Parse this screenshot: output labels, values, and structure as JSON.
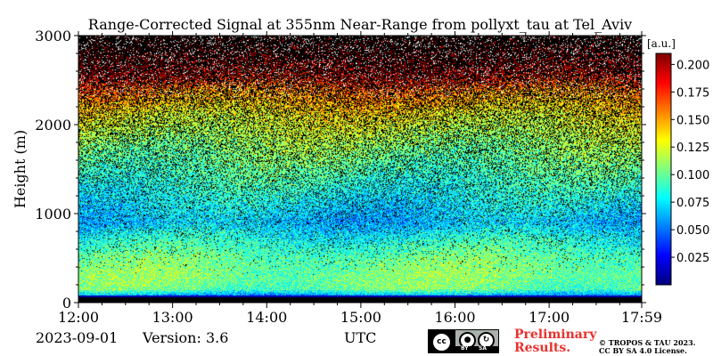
{
  "chart_data": {
    "type": "heatmap",
    "title": "Range-Corrected Signal at 355nm Near-Range from pollyxt_tau at Tel_Aviv",
    "xlabel": "UTC",
    "ylabel": "Height (m)",
    "x_tick_labels": [
      "12:00",
      "13:00",
      "14:00",
      "15:00",
      "16:00",
      "17:00",
      "17:59"
    ],
    "y_ticks": [
      0,
      1000,
      2000,
      3000
    ],
    "ylim": [
      0,
      3000
    ],
    "x_range": [
      "12:00",
      "17:59"
    ],
    "colorbar": {
      "label": "[a.u.]",
      "ticks": [
        "0.025",
        "0.050",
        "0.075",
        "0.100",
        "0.125",
        "0.150",
        "0.175",
        "0.200"
      ],
      "range": [
        0,
        0.21
      ],
      "colormap": "jet"
    },
    "profile": {
      "heights_m": [
        0,
        50,
        80,
        150,
        300,
        500,
        700,
        900,
        1200,
        1500,
        1800,
        2100,
        2400,
        2550,
        2800,
        3000
      ],
      "mean_signal": [
        0.0,
        0.0,
        0.06,
        0.1,
        0.105,
        0.1,
        0.085,
        0.065,
        0.08,
        0.095,
        0.11,
        0.13,
        0.16,
        0.19,
        0.21,
        0.21
      ]
    }
  },
  "footer": {
    "date": "2023-09-01",
    "version": "Version: 3.6",
    "preliminary": [
      "Preliminary",
      "Results."
    ],
    "copyright": [
      "© TROPOS & TAU 2023.",
      "CC BY SA 4.0 License."
    ],
    "license_badge": {
      "cc": "cc",
      "by": "BY",
      "sa": "SA"
    }
  },
  "colors": {
    "background_band": "#000000",
    "preliminary_text": "#e8312c"
  }
}
